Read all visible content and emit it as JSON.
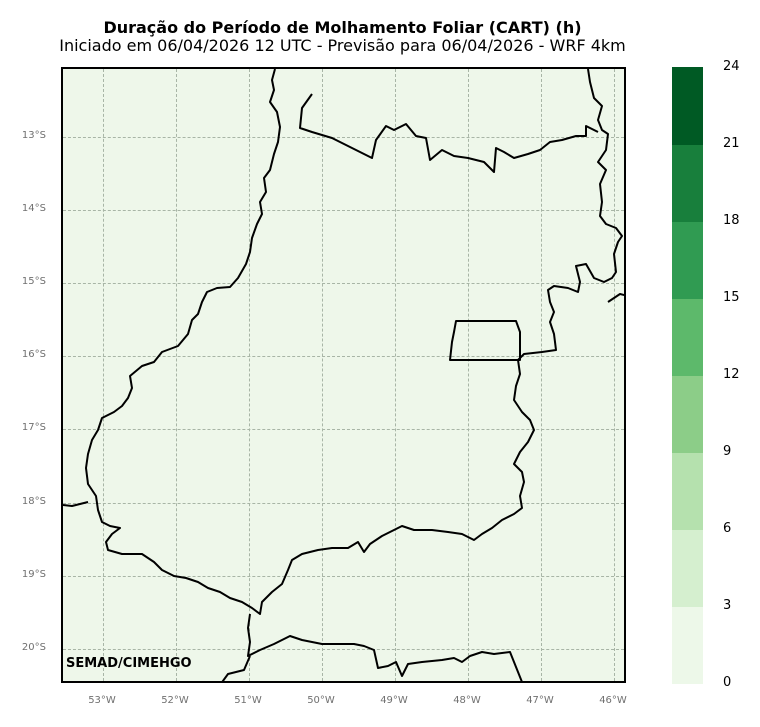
{
  "title": {
    "main": "Duração do Período de Molhamento Foliar (CART) (h)",
    "sub": "Iniciado em 06/04/2026 12 UTC - Previsão para 06/04/2026 - WRF 4km"
  },
  "map": {
    "background_color": "#eef7ea",
    "credit": "SEMAD/CIMEHGO",
    "lat_labels": [
      "13°S",
      "14°S",
      "15°S",
      "16°S",
      "17°S",
      "18°S",
      "19°S",
      "20°S"
    ],
    "lon_labels": [
      "53°W",
      "52°W",
      "51°W",
      "50°W",
      "49°W",
      "48°W",
      "47°W",
      "46°W"
    ]
  },
  "colorbar": {
    "ticks": [
      "0",
      "3",
      "6",
      "9",
      "12",
      "15",
      "18",
      "21",
      "24"
    ],
    "colors": [
      "#edf8e9",
      "#d5efcf",
      "#b5e1ae",
      "#8ccd88",
      "#5db96b",
      "#309b52",
      "#187f3c",
      "#005a24"
    ]
  }
}
